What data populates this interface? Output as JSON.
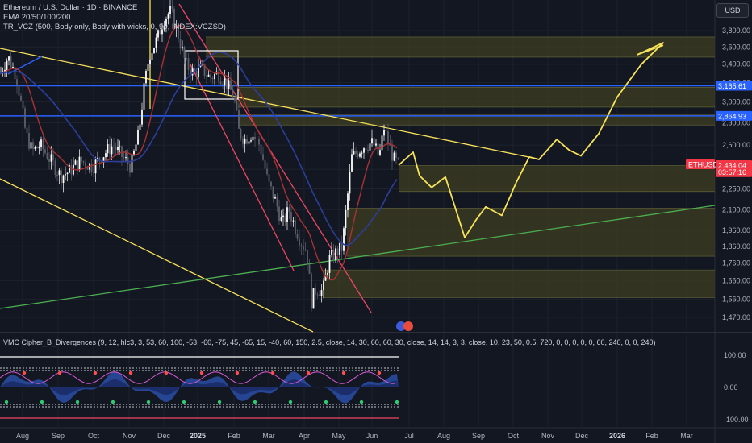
{
  "header": {
    "symbol_line": "Ethereum / U.S. Dollar · 1D · BINANCE",
    "ema_line": "EMA 20/50/100/200",
    "vcz_line": "TR_VCZ (500, Body only, Body with wicks, 0, 90, INDEX:VCZSD)",
    "scale_button": "USD"
  },
  "indicator": {
    "legend": "VMC Cipher_B_Divergences (9, 12, hlc3, 3, 53, 60, 100, -53, -60, -75, 45, -65, 15, -40, 60, 150, 2.5, close, 14, 30, 60, 60, 30, close, 14, 14, 3, 3, close, 10, 23, 50, 0.5, 720, 0, 0, 0, 0, 0, 60, 240, 0, 0, 240)",
    "ticks": [
      "100.00",
      "0.00",
      "-100.00"
    ],
    "colors": {
      "wave_blue": "#2a4fa8",
      "wave_dark": "#1b2a66",
      "green_dot": "#2ecc71",
      "red_dot": "#ff4d4d",
      "line_white": "#ffffff",
      "line_magenta": "#d65ad6"
    }
  },
  "price_scale": {
    "ticks": [
      "3,800.00",
      "3,600.00",
      "3,400.00",
      "3,200.00",
      "3,000.00",
      "2,800.00",
      "2,600.00",
      "2,400.00",
      "2,250.00",
      "2,100.00",
      "1,960.00",
      "1,860.00",
      "1,760.00",
      "1,660.00",
      "1,560.00",
      "1,470.00"
    ],
    "tags": [
      {
        "label": "3,165.61",
        "color": "#2962ff",
        "price": 3165.61
      },
      {
        "label": "2,864.93",
        "color": "#2962ff",
        "price": 2864.93
      },
      {
        "label": "ETHUSD",
        "color": "#f23645",
        "price": 2440
      },
      {
        "label": "2,434.04",
        "color": "#f23645",
        "price": 2434.04
      },
      {
        "label": "03:57:16",
        "color": "#f23645",
        "price": 2378
      }
    ]
  },
  "time_axis": {
    "labels": [
      "Aug",
      "Sep",
      "Oct",
      "Nov",
      "Dec",
      "2025",
      "Feb",
      "Mar",
      "Apr",
      "May",
      "Jun",
      "Jul",
      "Aug",
      "Sep",
      "Oct",
      "Nov",
      "Dec",
      "2026",
      "Feb",
      "Mar"
    ]
  },
  "chart_data": {
    "type": "candlestick",
    "title": "Ethereum / U.S. Dollar · 1D · BINANCE",
    "xlabel": "",
    "ylabel": "",
    "ylim": [
      1420,
      4000
    ],
    "y_scale": "log",
    "grid": true,
    "last_price": 2434.04,
    "horizontal_levels": [
      3165.61,
      2864.93
    ],
    "key_prices": {
      "high_dec_2024": 4100,
      "low_apr_2025": 1385,
      "high_jun_2025": 2880,
      "projection_target": 3650,
      "projection_low": 1915
    },
    "zones": [
      {
        "from": 3480,
        "to": 3720
      },
      {
        "from": 2950,
        "to": 3150
      },
      {
        "from": 2780,
        "to": 2880
      },
      {
        "from": 2230,
        "to": 2430
      },
      {
        "from": 1800,
        "to": 2110
      },
      {
        "from": 1570,
        "to": 1720
      }
    ],
    "colors": {
      "up": "#ffffff",
      "down": "#5d606b",
      "level": "#2962ff",
      "zone": "#3d3f22",
      "trendline": "#f7e25a",
      "red_channel": "#ef4763",
      "green_line": "#4caf50",
      "ema_red": "#a83232",
      "ema_blue": "#2c3e9a"
    }
  }
}
